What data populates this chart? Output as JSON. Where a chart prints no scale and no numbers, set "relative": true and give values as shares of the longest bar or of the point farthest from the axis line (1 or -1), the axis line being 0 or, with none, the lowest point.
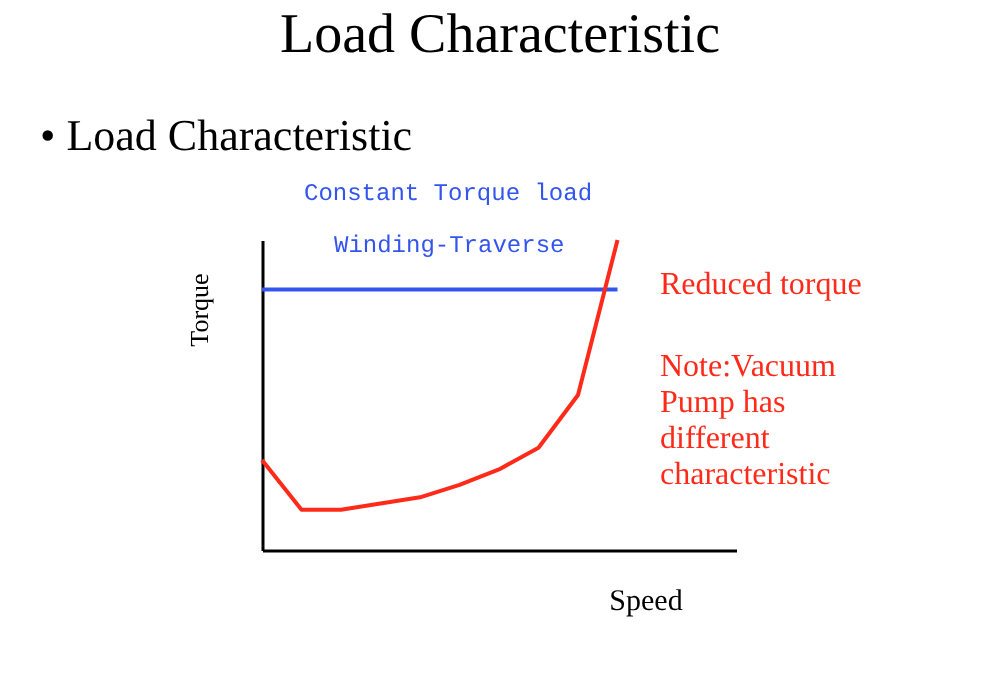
{
  "chart_data": {
    "type": "line",
    "title": "Load Characteristic",
    "subtitle": "• Load Characteristic",
    "xlabel": "Speed",
    "ylabel": "Torque",
    "relative": true,
    "categories": [
      null,
      null,
      null,
      null,
      null,
      null,
      null,
      null,
      null,
      null,
      null,
      null,
      null
    ],
    "series": [
      {
        "color": "#3355ee",
        "values": [
          0.84,
          0.84,
          0.84,
          0.84,
          0.84,
          0.84,
          0.84,
          0.84,
          0.84,
          0.84,
          null,
          null,
          null
        ]
      },
      {
        "color": "#ff2a1a",
        "values": [
          0.29,
          0.13,
          0.13,
          0.15,
          0.17,
          0.21,
          0.26,
          0.33,
          0.5,
          1,
          null,
          null,
          null
        ]
      }
    ],
    "annotations": [
      "Constant Torque load",
      "Winding-Traverse",
      "Reduced torque",
      "Note:Vacuum Pump has different characteristic"
    ],
    "grid": false
  }
}
